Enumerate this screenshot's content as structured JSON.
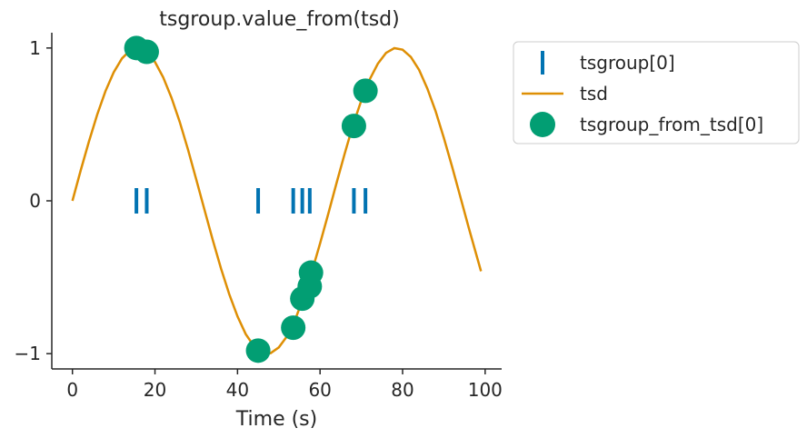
{
  "chart_data": {
    "type": "line",
    "title": "tsgroup.value_from(tsd)",
    "xlabel": "Time (s)",
    "ylabel": "",
    "xlim": [
      -5,
      104
    ],
    "ylim": [
      -1.1,
      1.1
    ],
    "xticks": [
      0,
      20,
      40,
      60,
      80,
      100
    ],
    "xtick_labels": [
      "0",
      "20",
      "40",
      "60",
      "80",
      "100"
    ],
    "yticks": [
      -1,
      0,
      1
    ],
    "ytick_labels": [
      "−1",
      "0",
      "1"
    ],
    "grid": false,
    "legend_position": "outside-right",
    "series": [
      {
        "name": "tsgroup[0]",
        "kind": "event-ticks",
        "color": "#0173b2",
        "x": [
          15.5,
          18.0,
          45.0,
          53.5,
          55.7,
          57.5,
          68.2,
          71.0
        ],
        "y": [
          0,
          0,
          0,
          0,
          0,
          0,
          0,
          0
        ]
      },
      {
        "name": "tsd",
        "kind": "line",
        "color": "#de8f05",
        "x": [
          0,
          2,
          4,
          6,
          8,
          10,
          12,
          14,
          16,
          18,
          20,
          22,
          24,
          26,
          28,
          30,
          32,
          34,
          36,
          38,
          40,
          42,
          44,
          46,
          48,
          50,
          52,
          54,
          56,
          58,
          60,
          62,
          64,
          66,
          68,
          70,
          72,
          74,
          76,
          78,
          80,
          82,
          84,
          86,
          88,
          90,
          92,
          94,
          96,
          98,
          99
        ],
        "y": [
          0.0,
          0.199,
          0.389,
          0.565,
          0.717,
          0.841,
          0.932,
          0.985,
          1.0,
          0.974,
          0.909,
          0.808,
          0.675,
          0.516,
          0.335,
          0.141,
          -0.058,
          -0.256,
          -0.443,
          -0.612,
          -0.757,
          -0.872,
          -0.951,
          -0.994,
          -0.997,
          -0.959,
          -0.886,
          -0.776,
          -0.631,
          -0.465,
          -0.279,
          -0.083,
          0.116,
          0.311,
          0.497,
          0.657,
          0.793,
          0.898,
          0.968,
          0.999,
          0.989,
          0.941,
          0.856,
          0.734,
          0.587,
          0.412,
          0.223,
          0.025,
          -0.174,
          -0.366,
          -0.461
        ]
      },
      {
        "name": "tsgroup_from_tsd[0]",
        "kind": "scatter",
        "color": "#029e73",
        "x": [
          15.5,
          18.0,
          45.0,
          53.5,
          55.7,
          57.5,
          57.8,
          68.2,
          71.0
        ],
        "y": [
          1.0,
          0.975,
          -0.98,
          -0.83,
          -0.64,
          -0.56,
          -0.47,
          0.49,
          0.72
        ]
      }
    ]
  }
}
